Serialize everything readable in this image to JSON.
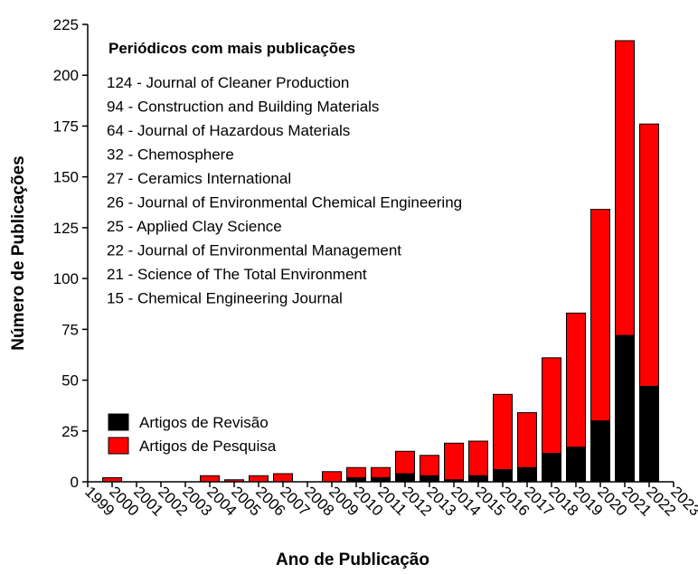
{
  "chart_data": {
    "type": "bar",
    "stacked": true,
    "xlabel": "Ano de Publicação",
    "ylabel": "Número de Publicações",
    "categories": [
      "1999",
      "2000",
      "2001",
      "2002",
      "2003",
      "2004",
      "2005",
      "2006",
      "2007",
      "2008",
      "2009",
      "2010",
      "2011",
      "2012",
      "2013",
      "2014",
      "2015",
      "2016",
      "2017",
      "2018",
      "2019",
      "2020",
      "2021",
      "2022",
      "2023"
    ],
    "series": [
      {
        "name": "Artigos de Revisão",
        "color": "#000000",
        "values": [
          0,
          0,
          0,
          0,
          0,
          0,
          0,
          0,
          0,
          0,
          0,
          2,
          2,
          4,
          3,
          1,
          3,
          6,
          7,
          14,
          17,
          30,
          72,
          47,
          0
        ]
      },
      {
        "name": "Artigos de Pesquisa",
        "color": "#ff0000",
        "values": [
          0,
          2,
          0,
          0,
          0,
          3,
          1,
          3,
          4,
          0,
          5,
          5,
          5,
          11,
          10,
          18,
          17,
          37,
          27,
          47,
          66,
          104,
          145,
          129,
          0
        ]
      }
    ],
    "ylim": [
      0,
      225
    ],
    "yticks": [
      0,
      25,
      50,
      75,
      100,
      125,
      150,
      175,
      200,
      225
    ],
    "legend": "lower-left",
    "annotation": {
      "title": "Periódicos com mais publicações",
      "items": [
        "124 - Journal of Cleaner Production",
        "94 - Construction and Building Materials",
        "64 - Journal of Hazardous Materials",
        "32 - Chemosphere",
        "27 - Ceramics International",
        "26 - Journal of Environmental Chemical Engineering",
        "25 - Applied Clay Science",
        "22 - Journal of Environmental Management",
        "21 - Science of The Total Environment",
        "15 - Chemical Engineering Journal"
      ]
    }
  }
}
